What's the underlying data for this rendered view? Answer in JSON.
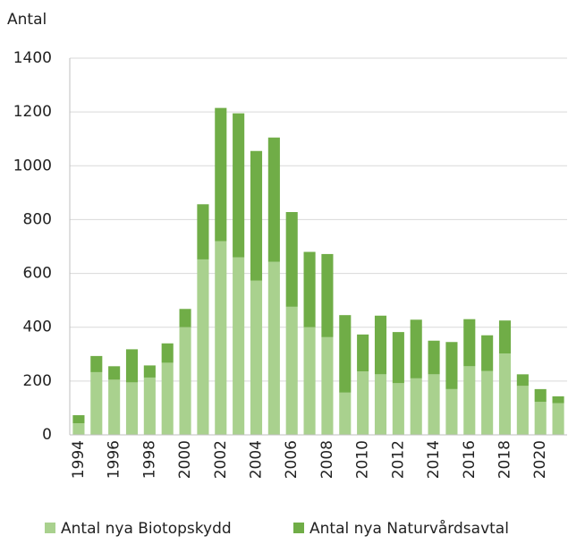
{
  "chart_data": {
    "type": "stacked-bar",
    "y_label": "Antal",
    "categories": [
      "1994",
      null,
      "1996",
      null,
      "1998",
      null,
      "2000",
      null,
      "2002",
      null,
      "2004",
      null,
      "2006",
      null,
      "2008",
      null,
      "2010",
      null,
      "2012",
      null,
      "2014",
      null,
      "2016",
      null,
      "2018",
      null,
      "2020",
      null
    ],
    "series": [
      {
        "name": "Antal nya Biotopskydd",
        "color": "#a9d18e",
        "values": [
          43,
          233,
          205,
          195,
          213,
          268,
          400,
          652,
          720,
          660,
          573,
          643,
          476,
          400,
          363,
          157,
          236,
          225,
          192,
          210,
          225,
          170,
          255,
          237,
          302,
          182,
          123,
          118
        ]
      },
      {
        "name": "Antal nya Naturvårdsavtal",
        "color": "#70ad47",
        "values": [
          30,
          60,
          50,
          123,
          45,
          72,
          68,
          205,
          495,
          535,
          482,
          462,
          352,
          280,
          309,
          288,
          137,
          218,
          190,
          218,
          125,
          175,
          175,
          133,
          123,
          43,
          47,
          25
        ]
      }
    ],
    "ylim": [
      0,
      1400
    ],
    "yticks": [
      0,
      200,
      400,
      600,
      800,
      1000,
      1200,
      1400
    ],
    "grid": true
  }
}
